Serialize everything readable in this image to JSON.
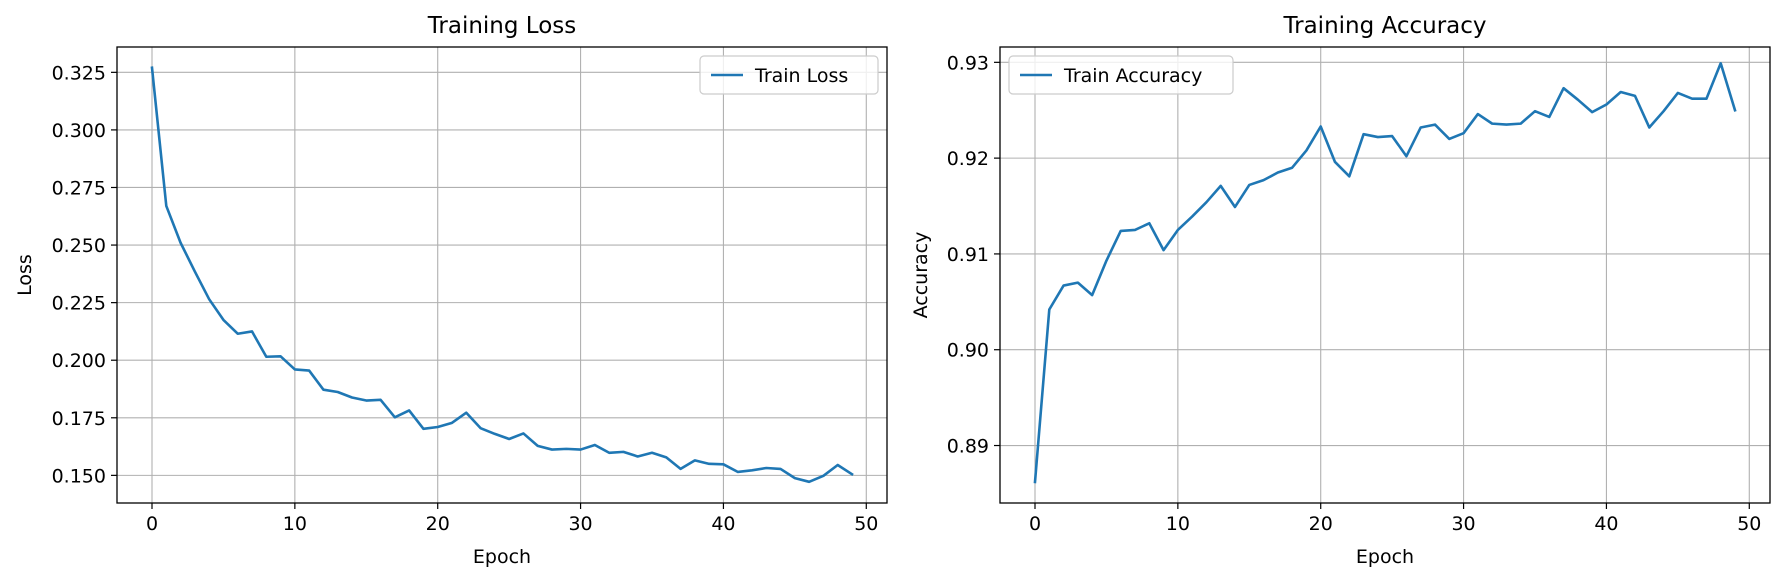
{
  "colors": {
    "series": "#1f77b4",
    "grid": "#b0b0b0",
    "axes": "#000000",
    "legend_border": "#cccccc"
  },
  "chart_data": [
    {
      "type": "line",
      "title": "Training Loss",
      "xlabel": "Epoch",
      "ylabel": "Loss",
      "grid": true,
      "legend_position": "top-right",
      "xlim": [
        -2.45,
        51.45
      ],
      "ylim": [
        0.138,
        0.336
      ],
      "xticks": [
        0,
        10,
        20,
        30,
        40,
        50
      ],
      "xtick_labels": [
        "0",
        "10",
        "20",
        "30",
        "40",
        "50"
      ],
      "yticks": [
        0.15,
        0.175,
        0.2,
        0.225,
        0.25,
        0.275,
        0.3,
        0.325
      ],
      "ytick_labels": [
        "0.150",
        "0.175",
        "0.200",
        "0.225",
        "0.250",
        "0.275",
        "0.300",
        "0.325"
      ],
      "series": [
        {
          "name": "Train Loss",
          "x": [
            0,
            1,
            2,
            3,
            4,
            5,
            6,
            7,
            8,
            9,
            10,
            11,
            12,
            13,
            14,
            15,
            16,
            17,
            18,
            19,
            20,
            21,
            22,
            23,
            24,
            25,
            26,
            27,
            28,
            29,
            30,
            31,
            32,
            33,
            34,
            35,
            36,
            37,
            38,
            39,
            40,
            41,
            42,
            43,
            44,
            45,
            46,
            47,
            48,
            49
          ],
          "y": [
            0.327,
            0.267,
            0.251,
            0.2385,
            0.2265,
            0.2175,
            0.2115,
            0.2125,
            0.2015,
            0.2017,
            0.196,
            0.1955,
            0.1872,
            0.1862,
            0.1838,
            0.1825,
            0.1828,
            0.1752,
            0.1782,
            0.1702,
            0.171,
            0.1728,
            0.1772,
            0.1705,
            0.168,
            0.1658,
            0.1682,
            0.1628,
            0.1612,
            0.1615,
            0.1612,
            0.1632,
            0.1598,
            0.1602,
            0.1582,
            0.1598,
            0.1578,
            0.1528,
            0.1565,
            0.155,
            0.1548,
            0.1515,
            0.1522,
            0.1532,
            0.1528,
            0.1488,
            0.1472,
            0.1498,
            0.1545,
            0.1505
          ]
        }
      ]
    },
    {
      "type": "line",
      "title": "Training Accuracy",
      "xlabel": "Epoch",
      "ylabel": "Accuracy",
      "grid": true,
      "legend_position": "top-left",
      "xlim": [
        -2.45,
        51.45
      ],
      "ylim": [
        0.884,
        0.9316
      ],
      "xticks": [
        0,
        10,
        20,
        30,
        40,
        50
      ],
      "xtick_labels": [
        "0",
        "10",
        "20",
        "30",
        "40",
        "50"
      ],
      "yticks": [
        0.89,
        0.9,
        0.91,
        0.92,
        0.93
      ],
      "ytick_labels": [
        "0.89",
        "0.90",
        "0.91",
        "0.92",
        "0.93"
      ],
      "series": [
        {
          "name": "Train Accuracy",
          "x": [
            0,
            1,
            2,
            3,
            4,
            5,
            6,
            7,
            8,
            9,
            10,
            11,
            12,
            13,
            14,
            15,
            16,
            17,
            18,
            19,
            20,
            21,
            22,
            23,
            24,
            25,
            26,
            27,
            28,
            29,
            30,
            31,
            32,
            33,
            34,
            35,
            36,
            37,
            38,
            39,
            40,
            41,
            42,
            43,
            44,
            45,
            46,
            47,
            48,
            49
          ],
          "y": [
            0.8862,
            0.9042,
            0.9067,
            0.907,
            0.9057,
            0.9093,
            0.9124,
            0.9125,
            0.9132,
            0.9104,
            0.9125,
            0.9139,
            0.9154,
            0.9171,
            0.9149,
            0.9172,
            0.9177,
            0.9185,
            0.919,
            0.9208,
            0.9233,
            0.9196,
            0.9181,
            0.9225,
            0.9222,
            0.9223,
            0.9202,
            0.9232,
            0.9235,
            0.922,
            0.9226,
            0.9246,
            0.9236,
            0.9235,
            0.9236,
            0.9249,
            0.9243,
            0.9273,
            0.9261,
            0.9248,
            0.9256,
            0.9269,
            0.9265,
            0.9232,
            0.9249,
            0.9268,
            0.9262,
            0.9262,
            0.9299,
            0.925
          ]
        }
      ]
    }
  ]
}
